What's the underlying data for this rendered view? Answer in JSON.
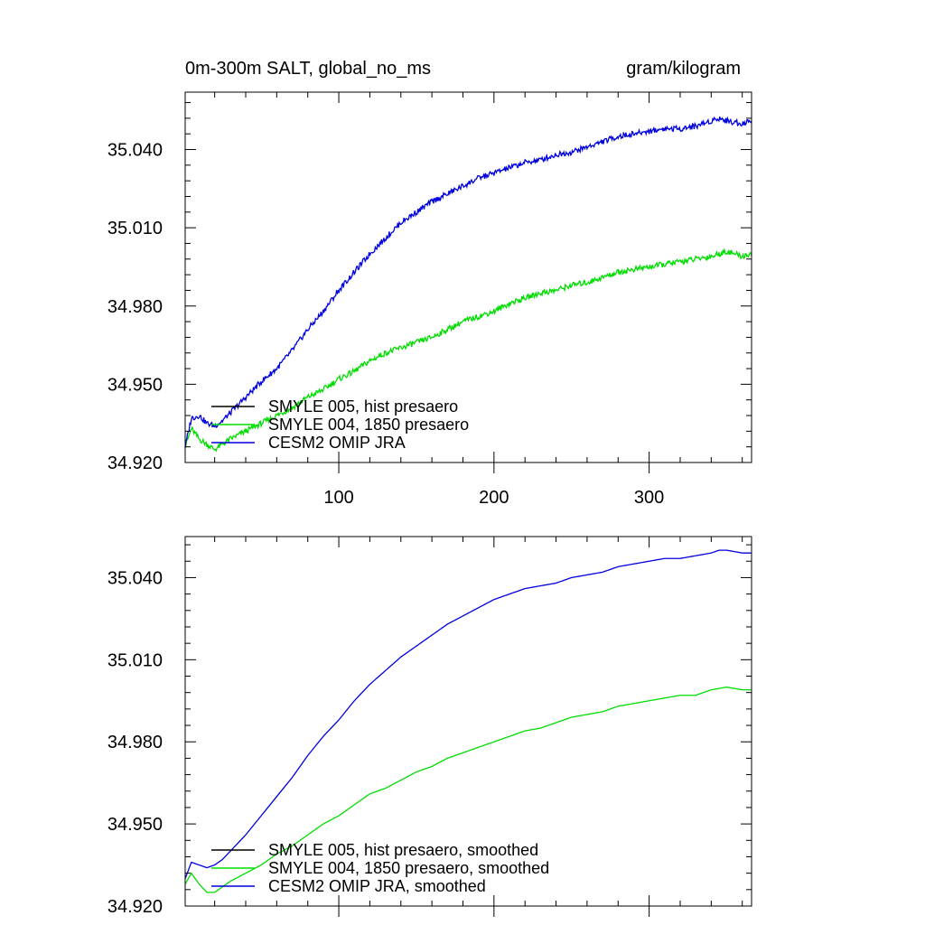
{
  "page_title": "0m-300m SALT, global_no_ms",
  "colors": {
    "black": "#000000",
    "green": "#00dd00",
    "blue": "#0000dd"
  },
  "chart_data": [
    {
      "type": "line",
      "title": "0m-300m SALT, global_no_ms",
      "units": "gram/kilogram",
      "xlabel": "",
      "ylabel": "",
      "xlim": [
        1,
        366
      ],
      "ylim": [
        34.92,
        35.062
      ],
      "xticks": [
        100,
        200,
        300
      ],
      "xtick_labels": [
        "100",
        "200",
        "300"
      ],
      "yticks": [
        34.92,
        34.95,
        34.98,
        35.01,
        35.04
      ],
      "ytick_labels": [
        "34.920",
        "34.950",
        "34.980",
        "35.010",
        "35.040"
      ],
      "grid": false,
      "legend_position": "bottom-left",
      "series": [
        {
          "name": "SMYLE 005, hist presaero",
          "color": "#000000",
          "x": [],
          "y": []
        },
        {
          "name": "SMYLE 004, 1850 presaero",
          "color": "#00dd00",
          "x": [
            1,
            5,
            10,
            15,
            20,
            25,
            30,
            40,
            50,
            60,
            70,
            80,
            90,
            100,
            110,
            120,
            130,
            140,
            150,
            160,
            170,
            180,
            190,
            200,
            210,
            220,
            230,
            240,
            250,
            260,
            270,
            280,
            290,
            300,
            310,
            320,
            330,
            340,
            350,
            360,
            366
          ],
          "y": [
            34.926,
            34.933,
            34.929,
            34.927,
            34.925,
            34.927,
            34.929,
            34.932,
            34.935,
            34.938,
            34.941,
            34.945,
            34.948,
            34.952,
            34.955,
            34.959,
            34.962,
            34.964,
            34.966,
            34.968,
            34.971,
            34.974,
            34.976,
            34.978,
            34.981,
            34.983,
            34.985,
            34.986,
            34.988,
            34.989,
            34.991,
            34.993,
            34.994,
            34.995,
            34.996,
            34.997,
            34.998,
            34.999,
            35.001,
            34.999,
            35.0
          ]
        },
        {
          "name": "CESM2 OMIP JRA",
          "color": "#0000dd",
          "x": [
            1,
            5,
            10,
            15,
            20,
            25,
            30,
            40,
            50,
            60,
            70,
            80,
            90,
            100,
            110,
            120,
            130,
            140,
            150,
            160,
            170,
            180,
            190,
            200,
            210,
            220,
            230,
            240,
            250,
            260,
            270,
            280,
            290,
            300,
            310,
            320,
            330,
            340,
            345,
            350,
            360,
            366
          ],
          "y": [
            34.926,
            34.937,
            34.938,
            34.935,
            34.934,
            34.936,
            34.939,
            34.945,
            34.951,
            34.956,
            34.963,
            34.971,
            34.978,
            34.986,
            34.993,
            35.0,
            35.006,
            35.012,
            35.016,
            35.02,
            35.023,
            35.026,
            35.029,
            35.031,
            35.033,
            35.035,
            35.036,
            35.038,
            35.039,
            35.041,
            35.043,
            35.045,
            35.046,
            35.047,
            35.048,
            35.048,
            35.049,
            35.051,
            35.052,
            35.051,
            35.05,
            35.051
          ]
        }
      ]
    },
    {
      "type": "line",
      "title": "",
      "units": "",
      "xlabel": "",
      "ylabel": "",
      "xlim": [
        1,
        366
      ],
      "ylim": [
        34.92,
        35.055
      ],
      "xticks": [
        100,
        200,
        300
      ],
      "xtick_labels": [
        "",
        "",
        ""
      ],
      "yticks": [
        34.92,
        34.95,
        34.98,
        35.01,
        35.04
      ],
      "ytick_labels": [
        "34.920",
        "34.950",
        "34.980",
        "35.010",
        "35.040"
      ],
      "grid": false,
      "legend_position": "bottom-left",
      "series": [
        {
          "name": "SMYLE 005, hist presaero, smoothed",
          "color": "#000000",
          "x": [],
          "y": []
        },
        {
          "name": "SMYLE 004, 1850 presaero, smoothed",
          "color": "#00dd00",
          "x": [
            1,
            5,
            10,
            15,
            20,
            25,
            30,
            40,
            50,
            60,
            70,
            80,
            90,
            100,
            110,
            120,
            130,
            140,
            150,
            160,
            170,
            180,
            190,
            200,
            210,
            220,
            230,
            240,
            250,
            260,
            270,
            280,
            290,
            300,
            310,
            320,
            330,
            340,
            350,
            360,
            366
          ],
          "y": [
            34.928,
            34.932,
            34.928,
            34.925,
            34.925,
            34.927,
            34.929,
            34.932,
            34.935,
            34.939,
            34.942,
            34.946,
            34.95,
            34.953,
            34.957,
            34.961,
            34.963,
            34.966,
            34.969,
            34.971,
            34.974,
            34.976,
            34.978,
            34.98,
            34.982,
            34.984,
            34.985,
            34.987,
            34.989,
            34.99,
            34.991,
            34.993,
            34.994,
            34.995,
            34.996,
            34.997,
            34.997,
            34.999,
            35.0,
            34.999,
            34.999
          ]
        },
        {
          "name": "CESM2 OMIP JRA, smoothed",
          "color": "#0000dd",
          "x": [
            1,
            5,
            10,
            15,
            20,
            25,
            30,
            40,
            50,
            60,
            70,
            80,
            90,
            100,
            110,
            120,
            130,
            140,
            150,
            160,
            170,
            180,
            190,
            200,
            210,
            220,
            230,
            240,
            250,
            260,
            270,
            280,
            290,
            300,
            310,
            320,
            330,
            340,
            345,
            350,
            360,
            366
          ],
          "y": [
            34.93,
            34.936,
            34.935,
            34.934,
            34.935,
            34.937,
            34.94,
            34.946,
            34.953,
            34.96,
            34.967,
            34.975,
            34.982,
            34.988,
            34.995,
            35.001,
            35.006,
            35.011,
            35.015,
            35.019,
            35.023,
            35.026,
            35.029,
            35.032,
            35.034,
            35.036,
            35.037,
            35.038,
            35.04,
            35.041,
            35.042,
            35.044,
            35.045,
            35.046,
            35.047,
            35.047,
            35.048,
            35.049,
            35.05,
            35.05,
            35.049,
            35.049
          ]
        }
      ]
    }
  ]
}
